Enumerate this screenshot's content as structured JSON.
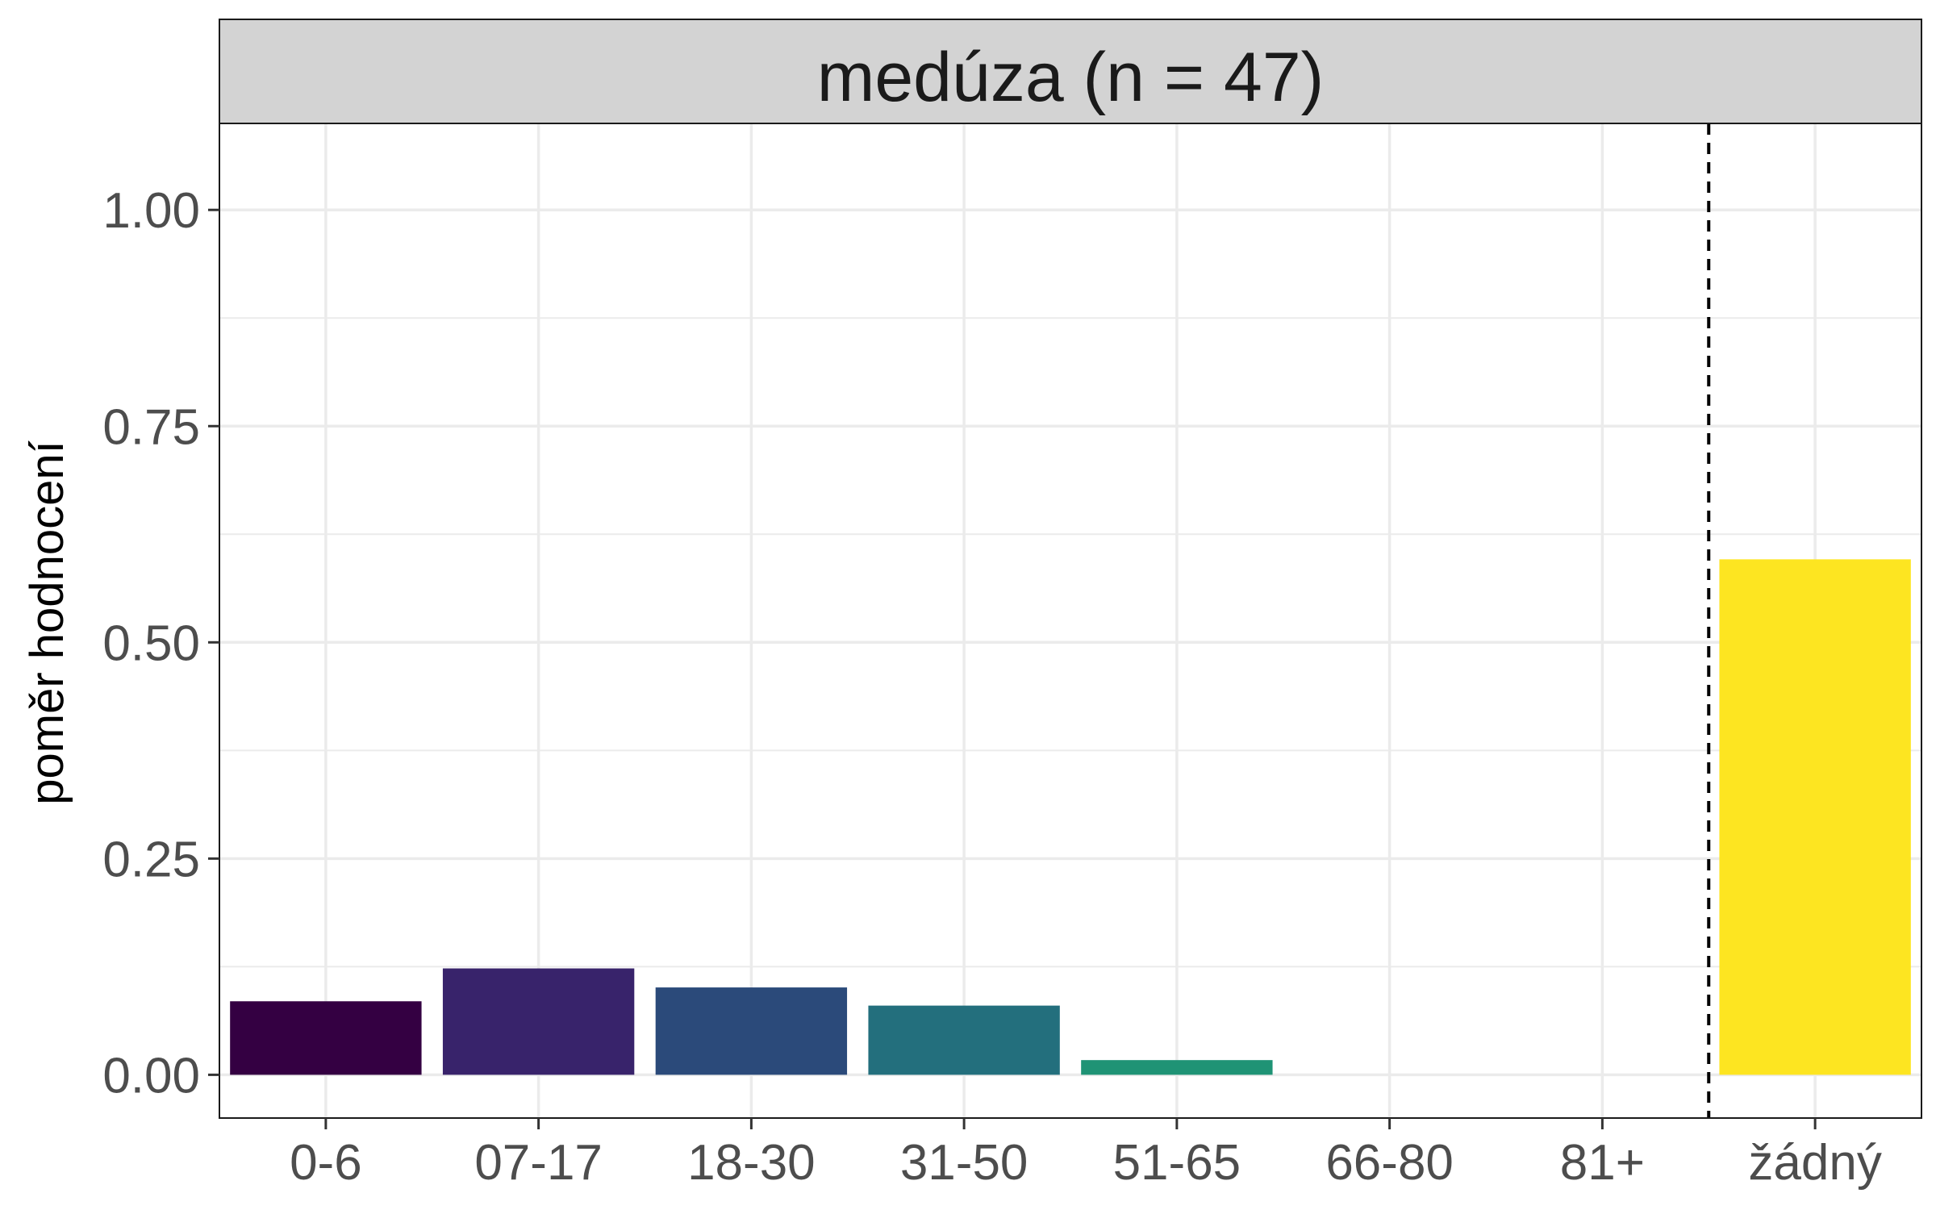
{
  "chart_data": {
    "type": "bar",
    "title": "",
    "panel_title": "medúza (n = 47)",
    "xlabel": "",
    "ylabel": "poměr hodnocení",
    "ylim": [
      -0.05,
      1.1
    ],
    "yticks": [
      0,
      0.25,
      0.5,
      0.75,
      1
    ],
    "ytick_labels": [
      "0.00",
      "0.25",
      "0.50",
      "0.75",
      "1.00"
    ],
    "categories": [
      "0-6",
      "07-17",
      "18-30",
      "31-50",
      "51-65",
      "66-80",
      "81+",
      "žádný"
    ],
    "values": [
      0.085,
      0.123,
      0.101,
      0.08,
      0.017,
      0,
      0,
      0.596
    ],
    "colors": [
      "#340042",
      "#38236b",
      "#2b4a7a",
      "#236f7d",
      "#1f9375",
      "#3fbc73",
      "#9fd94b",
      "#fde521"
    ],
    "separator_line": {
      "between_categories": [
        "81+",
        "žádný"
      ],
      "style": "dashed"
    },
    "grid": true,
    "legend": "none"
  }
}
